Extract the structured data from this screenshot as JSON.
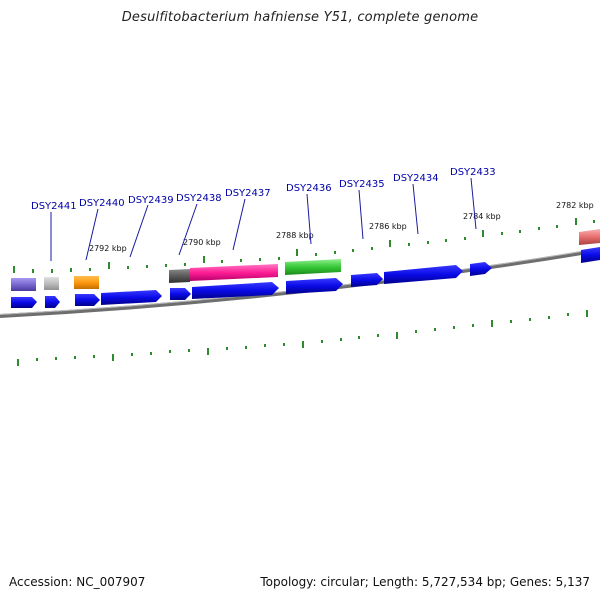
{
  "title": "Desulfitobacterium hafniense Y51, complete genome",
  "footer": {
    "accession": "Accession: NC_007907",
    "topology": "Topology: circular; Length: 5,727,534 bp; Genes: 5,137"
  },
  "colors": {
    "cds": "#0a0ae8",
    "tick": "#2d8a2d",
    "backbone": "#808080",
    "label": "#0000a8"
  },
  "kbp_marks": [
    "2792 kbp",
    "2790 kbp",
    "2788 kbp",
    "2786 kbp",
    "2784 kbp",
    "2782 kbp"
  ],
  "gene_labels": [
    "DSY2441",
    "DSY2440",
    "DSY2439",
    "DSY2438",
    "DSY2437",
    "DSY2436",
    "DSY2435",
    "DSY2434",
    "DSY2433"
  ],
  "feature_colors": [
    "#8070d0",
    "#bdbdbd",
    "#ff9a10",
    "#5a5a5a",
    "#ff1e96",
    "#36c836",
    "#e86e6e"
  ]
}
